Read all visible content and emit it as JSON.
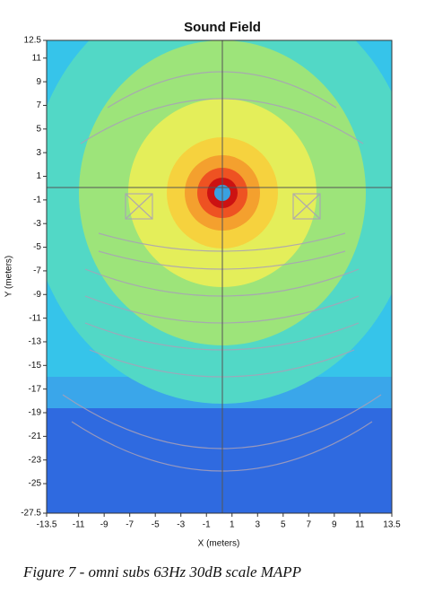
{
  "chart_data": {
    "type": "heatmap",
    "title": "Sound Field",
    "x_label": "X (meters)",
    "y_label": "Y (meters)",
    "xlim": [
      -13.5,
      13.5
    ],
    "ylim": [
      -27.5,
      12.5
    ],
    "xticks": [
      -13.5,
      -11,
      -9,
      -7,
      -5,
      -3,
      -1,
      1,
      3,
      5,
      7,
      9,
      11,
      13.5
    ],
    "yticks": [
      12.5,
      11,
      9,
      7,
      5,
      3,
      1,
      -1,
      -3,
      -5,
      -7,
      -9,
      -11,
      -13,
      -15,
      -17,
      -19,
      -21,
      -23,
      -25,
      -27.5
    ]
  },
  "caption": "Figure 7 - omni subs 63Hz 30dB scale MAPP"
}
